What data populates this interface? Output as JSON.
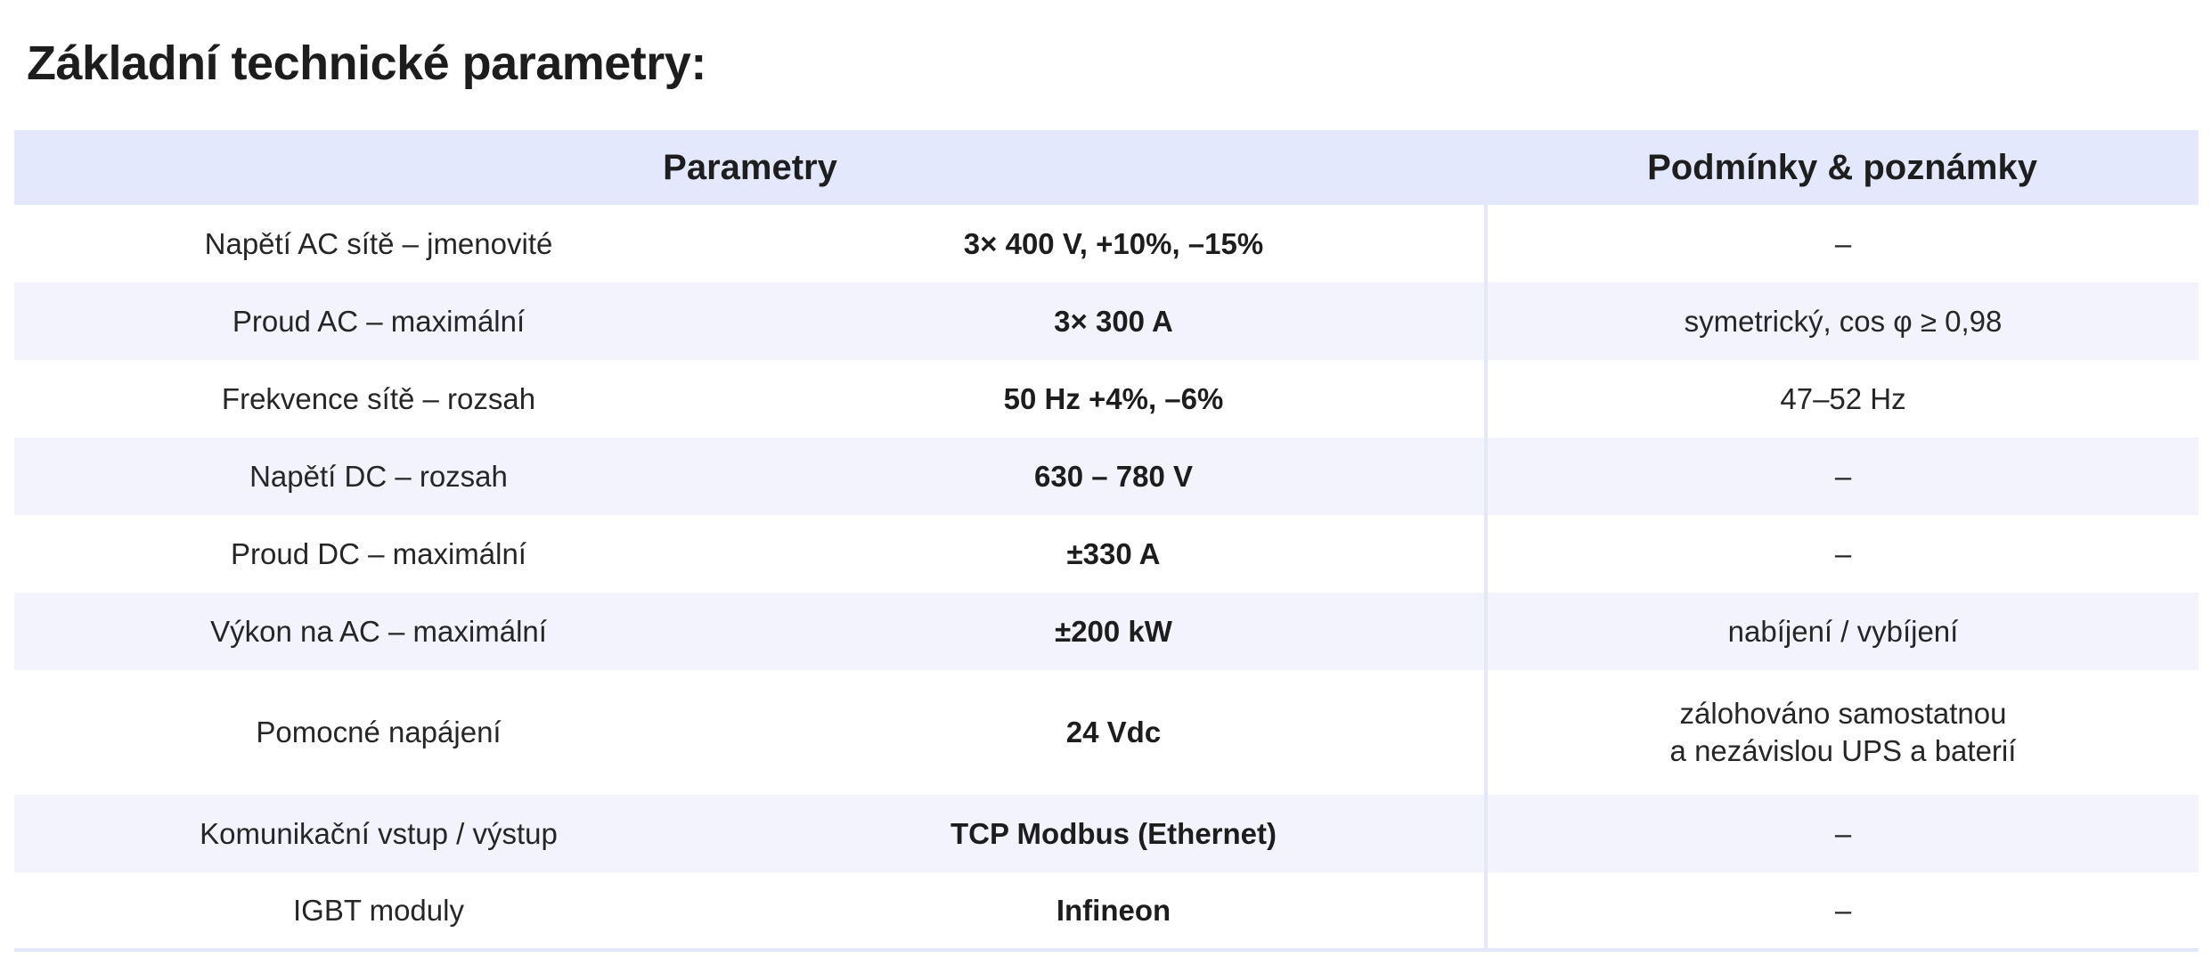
{
  "title": "Základní technické parametry:",
  "table": {
    "headers": {
      "parameters": "Parametry",
      "notes": "Podmínky & poznámky"
    },
    "rows": [
      {
        "label": "Napětí AC sítě – jmenovité",
        "value": "3× 400 V, +10%, –15%",
        "note": [
          "–"
        ]
      },
      {
        "label": "Proud AC – maximální",
        "value": "3× 300 A",
        "note": [
          "symetrický, cos φ ≥ 0,98"
        ]
      },
      {
        "label": "Frekvence sítě – rozsah",
        "value": "50 Hz +4%, –6%",
        "note": [
          "47–52 Hz"
        ]
      },
      {
        "label": "Napětí DC – rozsah",
        "value": "630 – 780 V",
        "note": [
          "–"
        ]
      },
      {
        "label": "Proud DC – maximální",
        "value": "±330 A",
        "note": [
          "–"
        ]
      },
      {
        "label": "Výkon na AC – maximální",
        "value": "±200 kW",
        "note": [
          "nabíjení / vybíjení"
        ]
      },
      {
        "label": "Pomocné napájení",
        "value": "24 Vdc",
        "note": [
          "zálohováno samostatnou",
          "a nezávislou UPS a baterií"
        ]
      },
      {
        "label": "Komunikační vstup / výstup",
        "value": "TCP Modbus (Ethernet)",
        "note": [
          "–"
        ]
      },
      {
        "label": "IGBT moduly",
        "value": "Infineon",
        "note": [
          "–"
        ]
      }
    ]
  }
}
